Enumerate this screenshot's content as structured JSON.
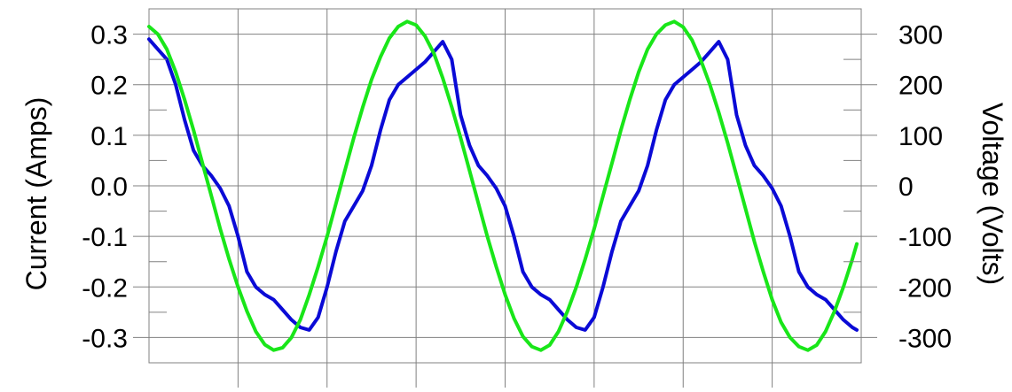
{
  "chart_data": {
    "type": "line",
    "title": "",
    "xlabel": "",
    "ylabel": "Current (Amps)",
    "y2label": "Voltage (Volts)",
    "grid": true,
    "legend": "none",
    "xlim": [
      0,
      8
    ],
    "ylim": [
      -0.35,
      0.35
    ],
    "y2lim": [
      -350,
      350
    ],
    "yticks": [
      "0.3",
      "0.2",
      "0.1",
      "0.0",
      "-0.1",
      "-0.2",
      "-0.3"
    ],
    "y2ticks": [
      "300",
      "200",
      "100",
      "0",
      "-100",
      "-200",
      "-300"
    ],
    "series": [
      {
        "axis": "left",
        "color": "#0a0ad6",
        "x": [
          0.0,
          0.1,
          0.2,
          0.3,
          0.4,
          0.5,
          0.6,
          0.7,
          0.8,
          0.9,
          1.0,
          1.1,
          1.2,
          1.3,
          1.4,
          1.5,
          1.6,
          1.7,
          1.8,
          1.9,
          2.0,
          2.1,
          2.2,
          2.3,
          2.4,
          2.5,
          2.6,
          2.7,
          2.8,
          2.9,
          3.0,
          3.1,
          3.2,
          3.3,
          3.4,
          3.5,
          3.6,
          3.7,
          3.8,
          3.9,
          4.0,
          4.1,
          4.2,
          4.3,
          4.4,
          4.5,
          4.6,
          4.7,
          4.8,
          4.9,
          5.0,
          5.1,
          5.2,
          5.3,
          5.4,
          5.5,
          5.6,
          5.7,
          5.8,
          5.9,
          6.0,
          6.1,
          6.2,
          6.3,
          6.4,
          6.5,
          6.6,
          6.7,
          6.8,
          6.9,
          7.0,
          7.1,
          7.2,
          7.3,
          7.4,
          7.5,
          7.6,
          7.7,
          7.8,
          7.9,
          7.95
        ],
        "y": [
          0.29,
          0.27,
          0.25,
          0.2,
          0.13,
          0.07,
          0.04,
          0.02,
          -0.005,
          -0.04,
          -0.1,
          -0.17,
          -0.2,
          -0.215,
          -0.225,
          -0.245,
          -0.265,
          -0.28,
          -0.285,
          -0.26,
          -0.2,
          -0.13,
          -0.07,
          -0.04,
          -0.01,
          0.04,
          0.11,
          0.17,
          0.2,
          0.215,
          0.23,
          0.245,
          0.265,
          0.285,
          0.25,
          0.14,
          0.08,
          0.04,
          0.02,
          -0.005,
          -0.04,
          -0.1,
          -0.17,
          -0.2,
          -0.215,
          -0.225,
          -0.245,
          -0.265,
          -0.28,
          -0.285,
          -0.26,
          -0.2,
          -0.13,
          -0.07,
          -0.04,
          -0.01,
          0.04,
          0.11,
          0.17,
          0.2,
          0.215,
          0.23,
          0.245,
          0.265,
          0.285,
          0.25,
          0.14,
          0.08,
          0.04,
          0.02,
          -0.005,
          -0.04,
          -0.1,
          -0.17,
          -0.2,
          -0.215,
          -0.225,
          -0.245,
          -0.265,
          -0.28,
          -0.285
        ]
      },
      {
        "axis": "right",
        "color": "#19e619",
        "x": [
          0.0,
          0.1,
          0.2,
          0.3,
          0.4,
          0.5,
          0.6,
          0.7,
          0.8,
          0.9,
          1.0,
          1.1,
          1.2,
          1.3,
          1.4,
          1.5,
          1.6,
          1.7,
          1.8,
          1.9,
          2.0,
          2.1,
          2.2,
          2.3,
          2.4,
          2.5,
          2.6,
          2.7,
          2.8,
          2.9,
          3.0,
          3.1,
          3.2,
          3.3,
          3.4,
          3.5,
          3.6,
          3.7,
          3.8,
          3.9,
          4.0,
          4.1,
          4.2,
          4.3,
          4.4,
          4.5,
          4.6,
          4.7,
          4.8,
          4.9,
          5.0,
          5.1,
          5.2,
          5.3,
          5.4,
          5.5,
          5.6,
          5.7,
          5.8,
          5.9,
          6.0,
          6.1,
          6.2,
          6.3,
          6.4,
          6.5,
          6.6,
          6.7,
          6.8,
          6.9,
          7.0,
          7.1,
          7.2,
          7.3,
          7.4,
          7.5,
          7.6,
          7.7,
          7.8,
          7.9,
          7.95
        ],
        "y": [
          315,
          300,
          270,
          225,
          170,
          110,
          45,
          -20,
          -85,
          -145,
          -200,
          -248,
          -288,
          -314,
          -325,
          -320,
          -300,
          -265,
          -215,
          -160,
          -100,
          -35,
          30,
          95,
          155,
          210,
          255,
          292,
          315,
          325,
          318,
          296,
          262,
          213,
          156,
          95,
          30,
          -35,
          -100,
          -160,
          -215,
          -262,
          -298,
          -318,
          -325,
          -315,
          -288,
          -248,
          -200,
          -145,
          -85,
          -20,
          45,
          110,
          170,
          225,
          270,
          300,
          318,
          325,
          314,
          288,
          248,
          200,
          145,
          85,
          20,
          -45,
          -110,
          -170,
          -225,
          -270,
          -300,
          -318,
          -325,
          -315,
          -288,
          -248,
          -200,
          -145,
          -115
        ]
      }
    ]
  }
}
